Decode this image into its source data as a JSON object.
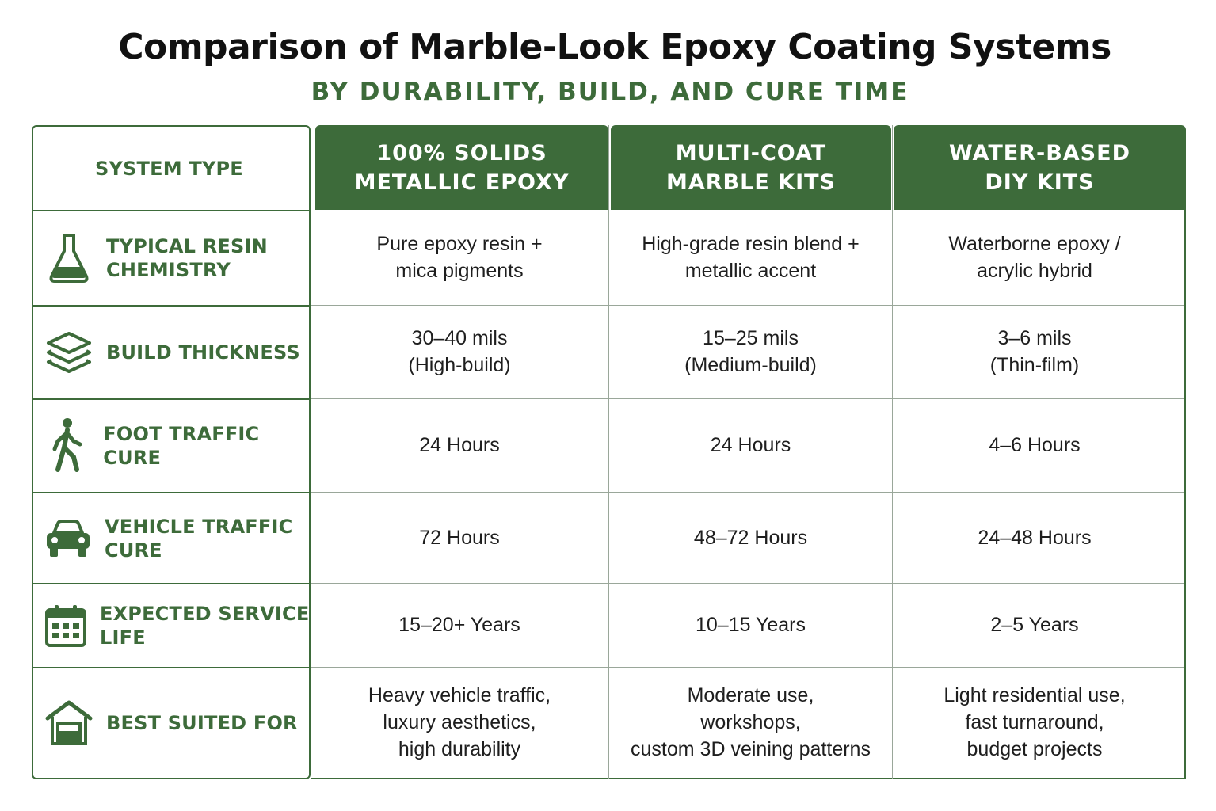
{
  "title": "Comparison of Marble-Look Epoxy Coating Systems",
  "subtitle": "BY DURABILITY, BUILD, AND CURE TIME",
  "colors": {
    "accent": "#3d6b3a",
    "text": "#1e1e1e",
    "grid": "#9aa79a"
  },
  "table": {
    "header_label": "SYSTEM TYPE",
    "columns": [
      {
        "line1": "100% SOLIDS",
        "line2": "METALLIC EPOXY"
      },
      {
        "line1": "MULTI-COAT",
        "line2": "MARBLE KITS"
      },
      {
        "line1": "WATER-BASED",
        "line2": "DIY KITS"
      }
    ],
    "rows": [
      {
        "icon": "flask-icon",
        "label_line1": "TYPICAL RESIN",
        "label_line2": "CHEMISTRY",
        "cells": [
          {
            "line1": "Pure epoxy resin +",
            "line2": "mica pigments"
          },
          {
            "line1": "High-grade resin blend +",
            "line2": "metallic accent"
          },
          {
            "line1": "Waterborne epoxy /",
            "line2": "acrylic hybrid"
          }
        ]
      },
      {
        "icon": "layers-icon",
        "label_line1": "BUILD THICKNESS",
        "label_line2": "",
        "cells": [
          {
            "line1": "30–40 mils",
            "line2": "(High-build)"
          },
          {
            "line1": "15–25 mils",
            "line2": "(Medium-build)"
          },
          {
            "line1": "3–6 mils",
            "line2": "(Thin-film)"
          }
        ]
      },
      {
        "icon": "walking-person-icon",
        "label_line1": "FOOT TRAFFIC CURE",
        "label_line2": "",
        "cells": [
          {
            "line1": "24 Hours",
            "line2": ""
          },
          {
            "line1": "24 Hours",
            "line2": ""
          },
          {
            "line1": "4–6 Hours",
            "line2": ""
          }
        ]
      },
      {
        "icon": "car-icon",
        "label_line1": "VEHICLE TRAFFIC CURE",
        "label_line2": "",
        "cells": [
          {
            "line1": "72 Hours",
            "line2": ""
          },
          {
            "line1": "48–72 Hours",
            "line2": ""
          },
          {
            "line1": "24–48 Hours",
            "line2": ""
          }
        ]
      },
      {
        "icon": "calendar-icon",
        "label_line1": "EXPECTED SERVICE LIFE",
        "label_line2": "",
        "cells": [
          {
            "line1": "15–20+ Years",
            "line2": ""
          },
          {
            "line1": "10–15 Years",
            "line2": ""
          },
          {
            "line1": "2–5 Years",
            "line2": ""
          }
        ]
      },
      {
        "icon": "garage-icon",
        "label_line1": "BEST SUITED FOR",
        "label_line2": "",
        "cells": [
          {
            "line1": "Heavy vehicle traffic,",
            "line2": "luxury aesthetics,",
            "line3": "high durability"
          },
          {
            "line1": "Moderate use,",
            "line2": "workshops,",
            "line3": "custom 3D veining patterns"
          },
          {
            "line1": "Light residential use,",
            "line2": "fast turnaround,",
            "line3": "budget projects"
          }
        ]
      }
    ]
  }
}
